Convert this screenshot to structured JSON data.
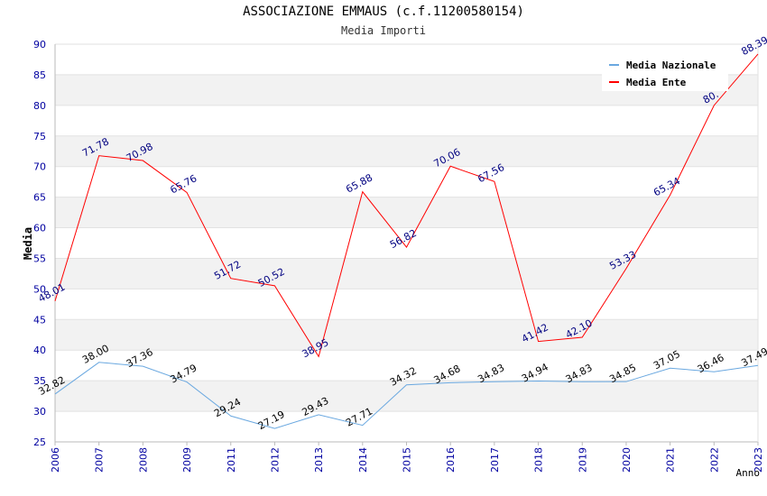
{
  "chart_data": {
    "type": "line",
    "title": "ASSOCIAZIONE EMMAUS (c.f.11200580154)",
    "subtitle": "Media Importi",
    "xlabel": "Anno",
    "ylabel": "Media",
    "x": [
      "2006",
      "2007",
      "2008",
      "2009",
      "2011",
      "2012",
      "2013",
      "2014",
      "2015",
      "2016",
      "2017",
      "2018",
      "2019",
      "2020",
      "2021",
      "2022",
      "2023"
    ],
    "ylim": [
      25,
      90
    ],
    "ytick_step": 5,
    "grid": true,
    "legend_position": "top-right",
    "series": [
      {
        "name": "Media Nazionale",
        "color": "#6aa8e0",
        "label_color": "#000000",
        "values": [
          32.82,
          38.0,
          37.36,
          34.79,
          29.24,
          27.19,
          29.43,
          27.71,
          34.32,
          34.68,
          34.83,
          34.94,
          34.83,
          34.85,
          37.05,
          36.46,
          37.49
        ],
        "labels": [
          "32.82",
          "38.00",
          "37.36",
          "34.79",
          "29.24",
          "27.19",
          "29.43",
          "27.71",
          "34.32",
          "34.68",
          "34.83",
          "34.94",
          "34.83",
          "34.85",
          "37.05",
          "36.46",
          "37.49"
        ]
      },
      {
        "name": "Media Ente",
        "color": "#ff0000",
        "label_color": "#000080",
        "values": [
          48.01,
          71.78,
          70.98,
          65.76,
          51.72,
          50.52,
          38.95,
          65.88,
          56.82,
          70.06,
          67.56,
          41.42,
          42.1,
          53.33,
          65.34,
          80.0,
          88.39
        ],
        "labels": [
          "48.01",
          "71.78",
          "70.98",
          "65.76",
          "51.72",
          "50.52",
          "38.95",
          "65.88",
          "56.82",
          "70.06",
          "67.56",
          "41.42",
          "42.10",
          "53.33",
          "65.34",
          "80.",
          "88.39"
        ]
      }
    ]
  }
}
